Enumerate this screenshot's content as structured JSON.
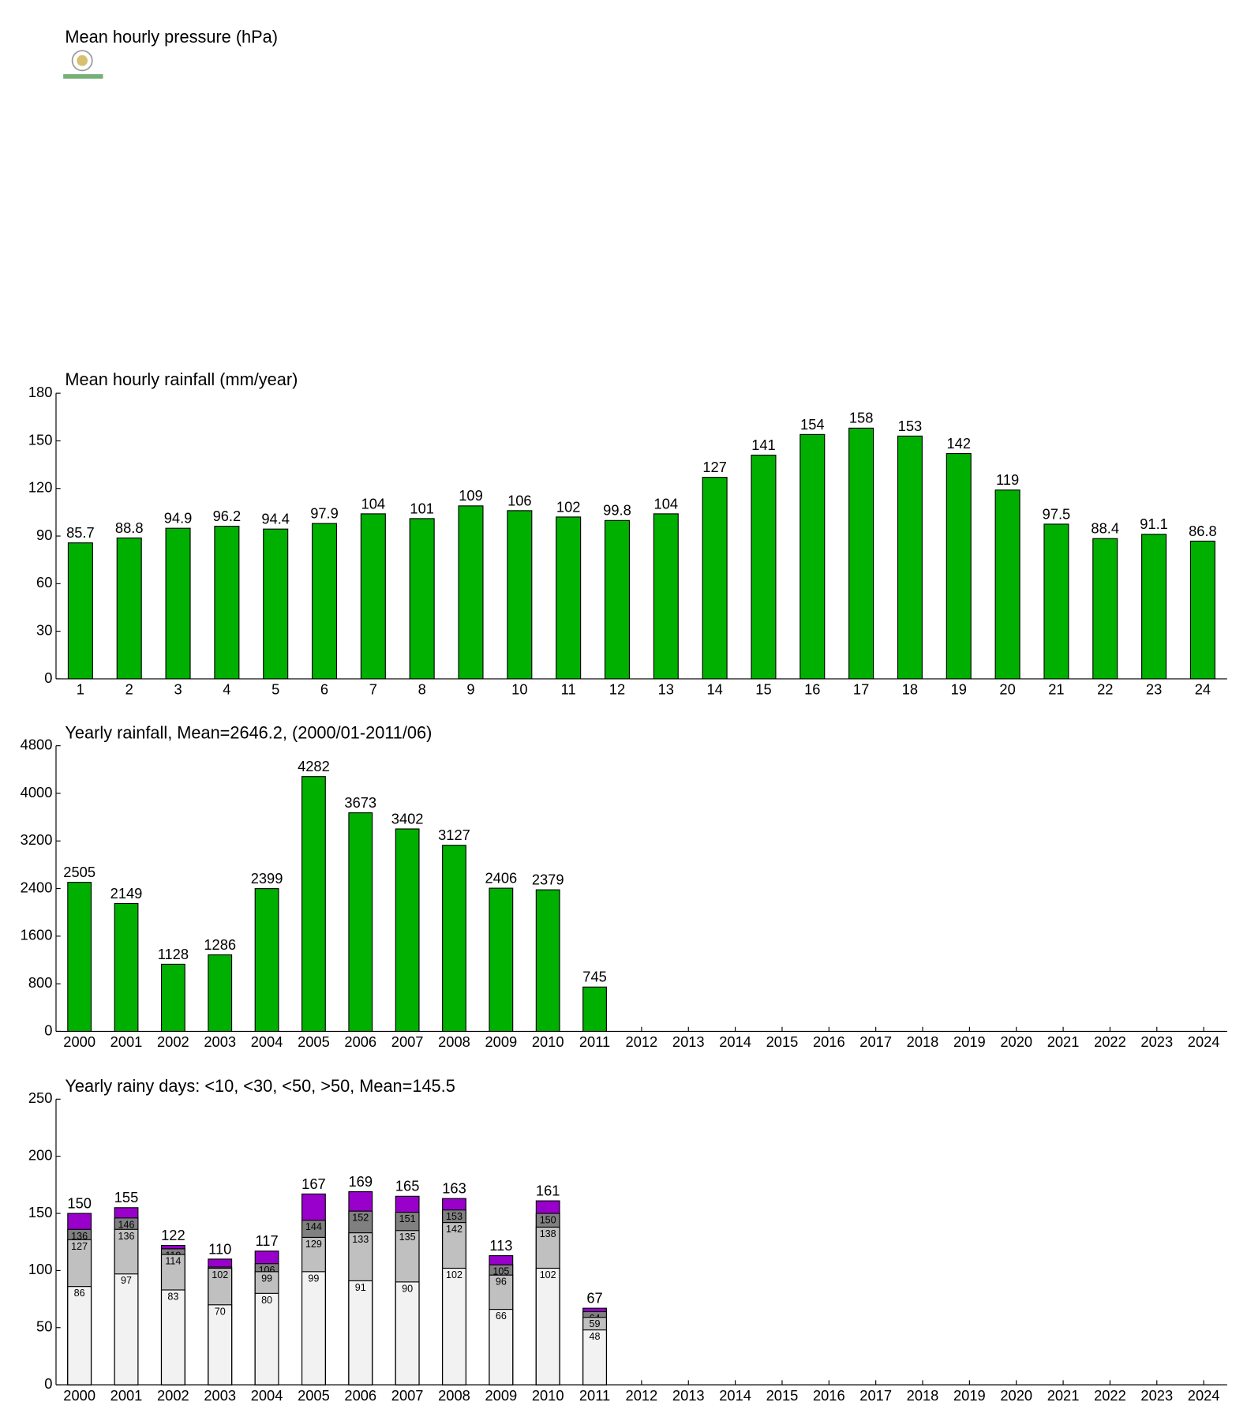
{
  "chart_data": [
    {
      "type": "bar",
      "title": "Mean hourly pressure (hPa)"
    },
    {
      "type": "bar",
      "title": "Mean hourly rainfall (mm/year)",
      "categories": [
        "1",
        "2",
        "3",
        "4",
        "5",
        "6",
        "7",
        "8",
        "9",
        "10",
        "11",
        "12",
        "13",
        "14",
        "15",
        "16",
        "17",
        "18",
        "19",
        "20",
        "21",
        "22",
        "23",
        "24"
      ],
      "values": [
        85.7,
        88.8,
        94.9,
        96.2,
        94.4,
        97.9,
        104,
        101,
        109,
        106,
        102,
        99.8,
        104,
        127,
        141,
        154,
        158,
        153,
        142,
        119,
        97.5,
        88.4,
        91.1,
        86.8
      ],
      "color": "#00b000",
      "ylim": [
        0,
        180
      ],
      "yticks": [
        0,
        30,
        60,
        90,
        120,
        150,
        180
      ]
    },
    {
      "type": "bar",
      "title": "Yearly rainfall, Mean=2646.2, (2000/01-2011/06)",
      "categories": [
        "2000",
        "2001",
        "2002",
        "2003",
        "2004",
        "2005",
        "2006",
        "2007",
        "2008",
        "2009",
        "2010",
        "2011",
        "2012",
        "2013",
        "2014",
        "2015",
        "2016",
        "2017",
        "2018",
        "2019",
        "2020",
        "2021",
        "2022",
        "2023",
        "2024"
      ],
      "values": [
        2505,
        2149,
        1128,
        1286,
        2399,
        4282,
        3673,
        3402,
        3127,
        2406,
        2379,
        745,
        null,
        null,
        null,
        null,
        null,
        null,
        null,
        null,
        null,
        null,
        null,
        null,
        null
      ],
      "color": "#00b000",
      "ylim": [
        0,
        4800
      ],
      "yticks": [
        0,
        800,
        1600,
        2400,
        3200,
        4000,
        4800
      ]
    },
    {
      "type": "overlap_bar",
      "title": "Yearly rainy days: <10, <30, <50, >50, Mean=145.5",
      "categories": [
        "2000",
        "2001",
        "2002",
        "2003",
        "2004",
        "2005",
        "2006",
        "2007",
        "2008",
        "2009",
        "2010",
        "2011",
        "2012",
        "2013",
        "2014",
        "2015",
        "2016",
        "2017",
        "2018",
        "2019",
        "2020",
        "2021",
        "2022",
        "2023",
        "2024"
      ],
      "series": [
        {
          "color": "#9900cc",
          "values": [
            150,
            155,
            122,
            110,
            117,
            167,
            169,
            165,
            163,
            113,
            161,
            67,
            null,
            null,
            null,
            null,
            null,
            null,
            null,
            null,
            null,
            null,
            null,
            null,
            null
          ]
        },
        {
          "color": "#808080",
          "values": [
            136,
            146,
            119,
            103,
            106,
            144,
            152,
            151,
            153,
            105,
            150,
            64,
            null,
            null,
            null,
            null,
            null,
            null,
            null,
            null,
            null,
            null,
            null,
            null,
            null
          ]
        },
        {
          "color": "#c0c0c0",
          "values": [
            127,
            136,
            114,
            102,
            99,
            129,
            133,
            135,
            142,
            96,
            138,
            59,
            null,
            null,
            null,
            null,
            null,
            null,
            null,
            null,
            null,
            null,
            null,
            null,
            null
          ]
        },
        {
          "color": "#f2f2f2",
          "values": [
            86,
            97,
            83,
            70,
            80,
            99,
            91,
            90,
            102,
            66,
            102,
            48,
            null,
            null,
            null,
            null,
            null,
            null,
            null,
            null,
            null,
            null,
            null,
            null,
            null
          ]
        }
      ],
      "ylim": [
        0,
        250
      ],
      "yticks": [
        0,
        50,
        100,
        150,
        200,
        250
      ]
    }
  ]
}
